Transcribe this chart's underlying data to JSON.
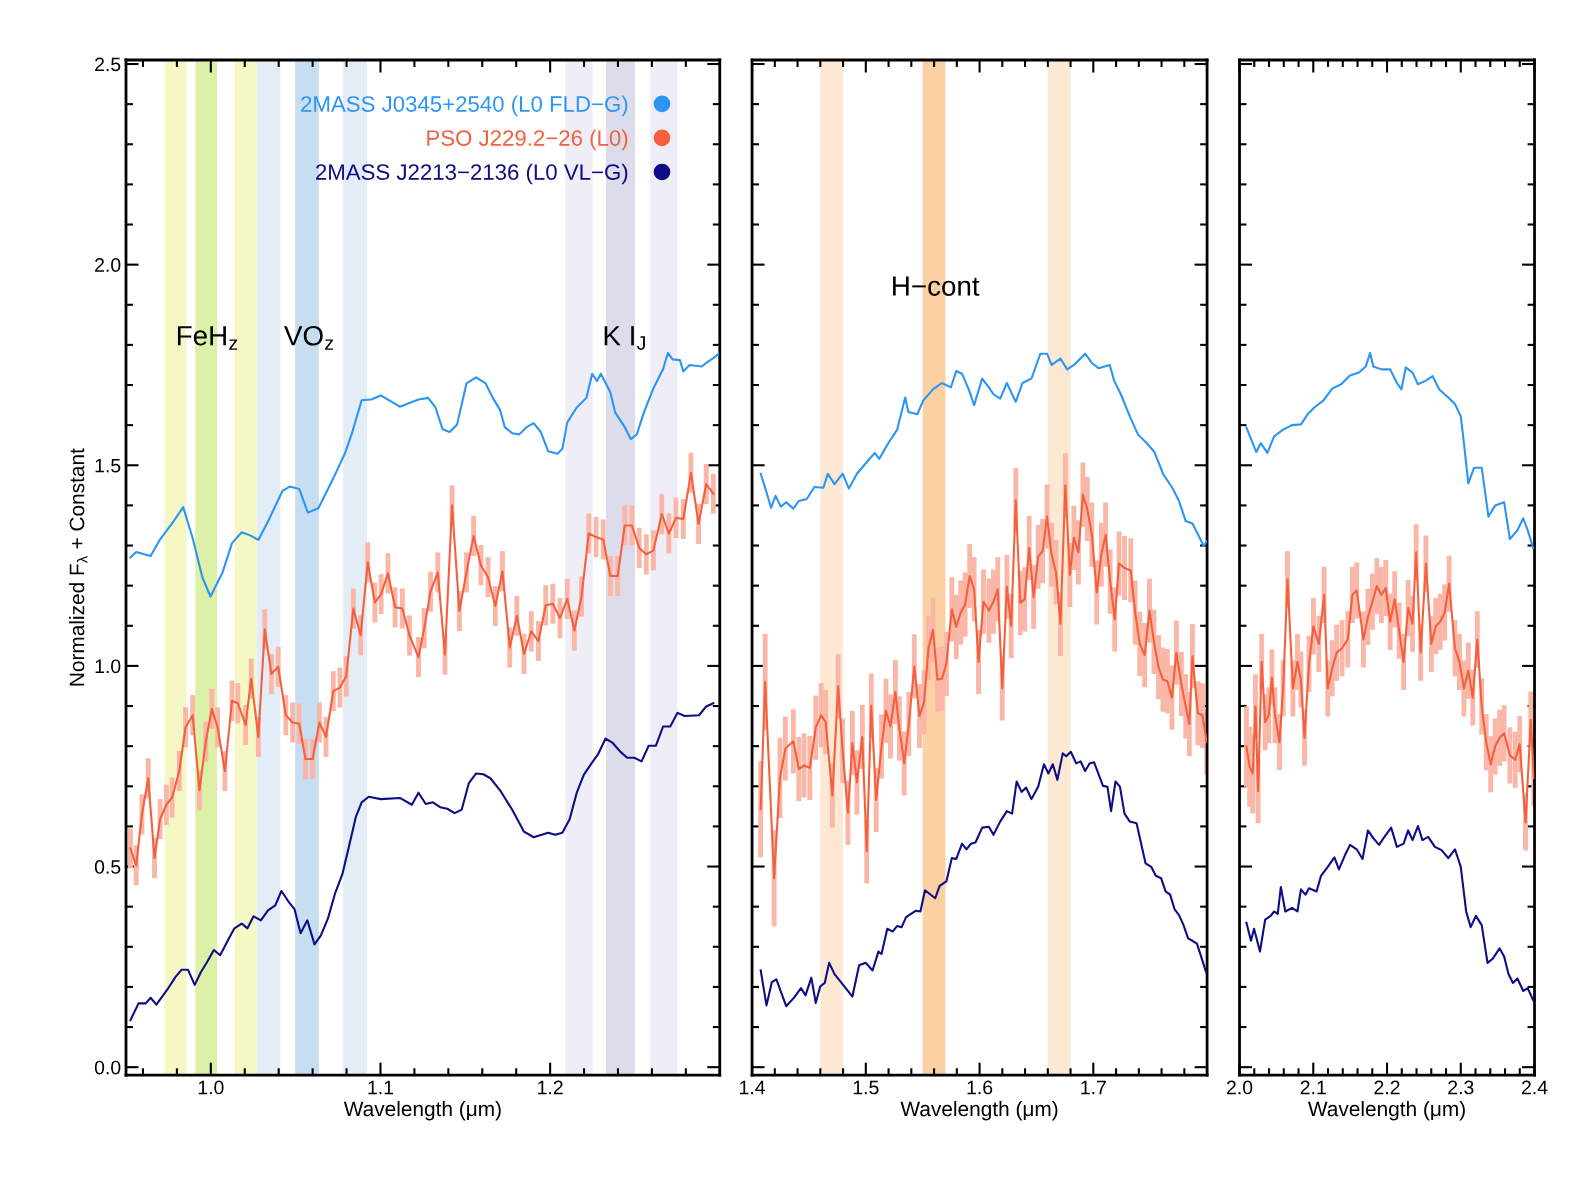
{
  "chart_data": [
    {
      "type": "line",
      "xlabel": "Wavelength (μm)",
      "ylabel": "Normalized F$_{λ}$ + Constant",
      "xlim": [
        0.95,
        1.3
      ],
      "ylim": [
        -0.02,
        2.51
      ],
      "xticks": [
        {
          "value": 1,
          "label": "1.0"
        },
        1.1,
        1.2
      ],
      "yticks": [
        {
          "value": 0,
          "label": "0.0"
        },
        0.5,
        {
          "value": 1,
          "label": "1.0"
        },
        1.5,
        {
          "value": 2,
          "label": "2.0"
        },
        2.5
      ],
      "legend": "top right",
      "marker": "none",
      "line_style": "solid",
      "bands": [
        {
          "axis": "x",
          "from": 0.9727,
          "to": 0.9856,
          "color": "#f5f8c4"
        },
        {
          "axis": "x",
          "from": 0.9908,
          "to": 1.0037,
          "color": "#ddf0a8"
        },
        {
          "axis": "x",
          "from": 1.0141,
          "to": 1.027,
          "color": "#f5f8c4"
        },
        {
          "axis": "x",
          "from": 1.027,
          "to": 1.041,
          "color": "#e3edf8"
        },
        {
          "axis": "x",
          "from": 1.0497,
          "to": 1.0637,
          "color": "#c7ddf0"
        },
        {
          "axis": "x",
          "from": 1.078,
          "to": 1.092,
          "color": "#e3edf8"
        },
        {
          "axis": "x",
          "from": 1.209,
          "to": 1.225,
          "color": "#efedf6"
        },
        {
          "axis": "x",
          "from": 1.233,
          "to": 1.25,
          "color": "#dcdcea"
        },
        {
          "axis": "x",
          "from": 1.259,
          "to": 1.275,
          "color": "#efedf6"
        }
      ],
      "annotations": [
        "FeH$_{z}$",
        "VO$_{z}$",
        "K I$_{J}$"
      ],
      "series": [
        {
          "name": "2MASS J0345+2540 (L0 FLD−G)",
          "color": "#2b95f5",
          "x": [
            0.9526,
            0.956,
            0.9645,
            0.9696,
            0.978,
            0.9837,
            0.9893,
            0.995,
            0.9998,
            1.0069,
            1.0125,
            1.0182,
            1.0238,
            1.028,
            1.0337,
            1.0422,
            1.0465,
            1.0521,
            1.0572,
            1.0634,
            1.0719,
            1.079,
            1.0832,
            1.0889,
            1.0945,
            1.1002,
            1.1114,
            1.1224,
            1.1281,
            1.1324,
            1.1366,
            1.1408,
            1.1451,
            1.1507,
            1.1564,
            1.162,
            1.1662,
            1.1705,
            1.1733,
            1.1776,
            1.1818,
            1.1861,
            1.1903,
            1.1945,
            1.1988,
            1.2044,
            1.2072,
            1.2101,
            1.2157,
            1.2214,
            1.2248,
            1.2276,
            1.2299,
            1.2355,
            1.2383,
            1.244,
            1.2476,
            1.2511,
            1.2553,
            1.2609,
            1.2666,
            1.2694,
            1.2722,
            1.2765,
            1.2785,
            1.2822,
            1.2892,
            1.292,
            1.2962,
            1.299
          ],
          "values": [
            1.27,
            1.284,
            1.274,
            1.312,
            1.36,
            1.396,
            1.318,
            1.221,
            1.173,
            1.233,
            1.306,
            1.333,
            1.324,
            1.314,
            1.36,
            1.436,
            1.447,
            1.441,
            1.382,
            1.393,
            1.465,
            1.529,
            1.58,
            1.662,
            1.664,
            1.674,
            1.646,
            1.664,
            1.668,
            1.644,
            1.59,
            1.583,
            1.601,
            1.704,
            1.719,
            1.704,
            1.668,
            1.638,
            1.595,
            1.58,
            1.577,
            1.595,
            1.605,
            1.583,
            1.535,
            1.529,
            1.541,
            1.607,
            1.644,
            1.668,
            1.728,
            1.71,
            1.728,
            1.682,
            1.632,
            1.595,
            1.565,
            1.577,
            1.632,
            1.692,
            1.74,
            1.78,
            1.764,
            1.762,
            1.734,
            1.75,
            1.746,
            1.755,
            1.767,
            1.777
          ]
        },
        {
          "name": "PSO J229.2−26 (L0)",
          "color": "#f4603e",
          "x": [
            0.9526,
            0.956,
            0.9594,
            0.9631,
            0.9668,
            0.9701,
            0.9738,
            0.9772,
            0.9814,
            0.9851,
            0.9893,
            0.9933,
            0.997,
            1.0006,
            1.004,
            1.0083,
            1.0125,
            1.0159,
            1.0205,
            1.0238,
            1.028,
            1.0318,
            1.0357,
            1.0397,
            1.0442,
            1.0482,
            1.0521,
            1.0558,
            1.06,
            1.064,
            1.0679,
            1.0722,
            1.0761,
            1.0798,
            1.084,
            1.0883,
            1.0925,
            1.0967,
            1.1004,
            1.1044,
            1.1086,
            1.1129,
            1.1171,
            1.1224,
            1.1258,
            1.1295,
            1.1338,
            1.138,
            1.1422,
            1.1465,
            1.1507,
            1.1549,
            1.1592,
            1.1634,
            1.1677,
            1.1719,
            1.1762,
            1.1804,
            1.1846,
            1.1889,
            1.1931,
            1.1974,
            1.2016,
            1.2058,
            1.2101,
            1.2143,
            1.2185,
            1.2228,
            1.2271,
            1.2313,
            1.2355,
            1.2398,
            1.244,
            1.2482,
            1.2525,
            1.2567,
            1.2609,
            1.2658,
            1.27,
            1.2742,
            1.2785,
            1.283,
            1.2875,
            1.292,
            1.2962
          ],
          "values": [
            0.545,
            0.503,
            0.63,
            0.72,
            0.521,
            0.618,
            0.654,
            0.672,
            0.738,
            0.847,
            0.877,
            0.69,
            0.811,
            0.893,
            0.847,
            0.738,
            0.913,
            0.907,
            0.853,
            0.968,
            0.823,
            1.091,
            0.98,
            0.998,
            0.877,
            0.859,
            0.856,
            0.768,
            0.768,
            0.859,
            0.823,
            0.937,
            0.946,
            0.974,
            1.143,
            1.076,
            1.258,
            1.158,
            1.179,
            1.231,
            1.146,
            1.143,
            1.076,
            1.022,
            1.094,
            1.185,
            1.233,
            1.028,
            1.4,
            1.137,
            1.233,
            1.324,
            1.251,
            1.221,
            1.149,
            1.236,
            1.046,
            1.125,
            1.03,
            1.086,
            1.062,
            1.151,
            1.155,
            1.119,
            1.167,
            1.088,
            1.173,
            1.33,
            1.321,
            1.315,
            1.224,
            1.224,
            1.35,
            1.35,
            1.294,
            1.278,
            1.288,
            1.378,
            1.33,
            1.369,
            1.366,
            1.481,
            1.354,
            1.453,
            1.429
          ],
          "errors": [
            0.05,
            0.05,
            0.05,
            0.05,
            0.05,
            0.05,
            0.05,
            0.05,
            0.05,
            0.05,
            0.05,
            0.05,
            0.05,
            0.05,
            0.05,
            0.05,
            0.05,
            0.05,
            0.05,
            0.05,
            0.05,
            0.05,
            0.05,
            0.05,
            0.05,
            0.05,
            0.05,
            0.05,
            0.05,
            0.05,
            0.05,
            0.05,
            0.05,
            0.05,
            0.05,
            0.05,
            0.05,
            0.05,
            0.05,
            0.05,
            0.05,
            0.05,
            0.05,
            0.05,
            0.05,
            0.05,
            0.05,
            0.05,
            0.05,
            0.05,
            0.05,
            0.05,
            0.05,
            0.05,
            0.05,
            0.05,
            0.05,
            0.05,
            0.05,
            0.05,
            0.05,
            0.05,
            0.05,
            0.05,
            0.05,
            0.05,
            0.05,
            0.05,
            0.05,
            0.05,
            0.05,
            0.05,
            0.05,
            0.05,
            0.05,
            0.05,
            0.05,
            0.05,
            0.05,
            0.05,
            0.05,
            0.05,
            0.05,
            0.05,
            0.05
          ]
        },
        {
          "name": "2MASS J2213−2136 (L0 VL−G)",
          "color": "#0d0d85",
          "x": [
            0.9526,
            0.9574,
            0.9616,
            0.9645,
            0.9679,
            0.9743,
            0.9792,
            0.9828,
            0.9865,
            0.9905,
            0.9942,
            0.9978,
            1.0018,
            1.0055,
            1.0097,
            1.0139,
            1.0182,
            1.0216,
            1.0252,
            1.0295,
            1.0337,
            1.038,
            1.0416,
            1.0459,
            1.0493,
            1.0529,
            1.0569,
            1.0611,
            1.0648,
            1.069,
            1.0733,
            1.0776,
            1.0818,
            1.0855,
            1.0889,
            1.0931,
            1.1002,
            1.1114,
            1.1185,
            1.1224,
            1.1267,
            1.1309,
            1.1352,
            1.1394,
            1.1437,
            1.1479,
            1.1521,
            1.1564,
            1.1606,
            1.1648,
            1.1705,
            1.1776,
            1.1846,
            1.1903,
            1.1988,
            1.203,
            1.2072,
            1.2115,
            1.2157,
            1.2199,
            1.2242,
            1.2284,
            1.2327,
            1.2369,
            1.2412,
            1.2454,
            1.2496,
            1.2539,
            1.2581,
            1.2623,
            1.2666,
            1.2708,
            1.2751,
            1.2793,
            1.2878,
            1.292,
            1.2962
          ],
          "values": [
            0.117,
            0.159,
            0.159,
            0.173,
            0.156,
            0.193,
            0.225,
            0.243,
            0.243,
            0.205,
            0.237,
            0.262,
            0.292,
            0.279,
            0.313,
            0.346,
            0.358,
            0.346,
            0.376,
            0.366,
            0.391,
            0.403,
            0.439,
            0.412,
            0.394,
            0.334,
            0.366,
            0.306,
            0.328,
            0.37,
            0.434,
            0.482,
            0.557,
            0.624,
            0.66,
            0.674,
            0.668,
            0.671,
            0.654,
            0.684,
            0.656,
            0.66,
            0.648,
            0.644,
            0.633,
            0.642,
            0.708,
            0.732,
            0.73,
            0.72,
            0.69,
            0.642,
            0.587,
            0.573,
            0.584,
            0.579,
            0.584,
            0.618,
            0.684,
            0.729,
            0.756,
            0.781,
            0.819,
            0.808,
            0.787,
            0.771,
            0.771,
            0.762,
            0.801,
            0.801,
            0.849,
            0.849,
            0.883,
            0.875,
            0.877,
            0.899,
            0.907
          ]
        }
      ]
    },
    {
      "type": "line",
      "xlabel": "Wavelength (μm)",
      "xlim": [
        1.4,
        1.8
      ],
      "ylim": [
        -0.02,
        2.51
      ],
      "xticks": [
        1.4,
        1.5,
        1.6,
        1.7
      ],
      "yticks": [
        0,
        0.5,
        1,
        1.5,
        2,
        2.5
      ],
      "tick_labels": "x",
      "marker": "none",
      "line_style": "solid",
      "bands": [
        {
          "axis": "x",
          "from": 1.46,
          "to": 1.48,
          "color": "#fde8d4"
        },
        {
          "axis": "x",
          "from": 1.55,
          "to": 1.57,
          "color": "#fbd0a3"
        },
        {
          "axis": "x",
          "from": 1.66,
          "to": 1.68,
          "color": "#fde8d4"
        }
      ],
      "annotations": [
        "H−cont"
      ],
      "series": [
        {
          "color": "#2b95f5",
          "x": [
            1.4076,
            1.4115,
            1.4167,
            1.4206,
            1.4253,
            1.43,
            1.4363,
            1.4411,
            1.4481,
            1.4548,
            1.4627,
            1.4666,
            1.4725,
            1.4796,
            1.4851,
            1.4922,
            1.5,
            1.5079,
            1.5118,
            1.5197,
            1.5276,
            1.5346,
            1.5374,
            1.5453,
            1.5504,
            1.559,
            1.5669,
            1.5748,
            1.5795,
            1.5846,
            1.5905,
            1.5952,
            1.6023,
            1.6082,
            1.6122,
            1.6181,
            1.624,
            1.6318,
            1.6377,
            1.6456,
            1.6534,
            1.6593,
            1.6633,
            1.6711,
            1.677,
            1.6829,
            1.6928,
            1.6987,
            1.7046,
            1.7144,
            1.7183,
            1.7242,
            1.7321,
            1.7392,
            1.747,
            1.7537,
            1.7616,
            1.7694,
            1.7753,
            1.7812,
            1.7871,
            1.7911,
            1.797,
            1.8
          ],
          "values": [
            1.479,
            1.444,
            1.394,
            1.424,
            1.397,
            1.408,
            1.392,
            1.411,
            1.416,
            1.446,
            1.444,
            1.479,
            1.453,
            1.479,
            1.442,
            1.479,
            1.505,
            1.531,
            1.516,
            1.555,
            1.589,
            1.669,
            1.633,
            1.627,
            1.661,
            1.689,
            1.705,
            1.694,
            1.735,
            1.728,
            1.689,
            1.65,
            1.716,
            1.694,
            1.677,
            1.666,
            1.705,
            1.658,
            1.705,
            1.716,
            1.778,
            1.778,
            1.75,
            1.766,
            1.739,
            1.75,
            1.778,
            1.755,
            1.742,
            1.75,
            1.711,
            1.677,
            1.622,
            1.577,
            1.555,
            1.533,
            1.477,
            1.444,
            1.411,
            1.361,
            1.355,
            1.333,
            1.299,
            1.311
          ]
        },
        {
          "color": "#f4603e",
          "x": [
            1.4076,
            1.4115,
            1.4194,
            1.4245,
            1.4293,
            1.4363,
            1.4411,
            1.4457,
            1.4508,
            1.456,
            1.4607,
            1.4647,
            1.4706,
            1.4757,
            1.4796,
            1.4843,
            1.4882,
            1.4922,
            1.4969,
            1.5008,
            1.5048,
            1.5091,
            1.5138,
            1.5177,
            1.5217,
            1.526,
            1.5295,
            1.5338,
            1.5378,
            1.5426,
            1.5472,
            1.5512,
            1.5551,
            1.559,
            1.563,
            1.5669,
            1.5708,
            1.5756,
            1.5795,
            1.5834,
            1.5873,
            1.5913,
            1.5952,
            1.5991,
            1.6034,
            1.6082,
            1.6122,
            1.616,
            1.62,
            1.624,
            1.6278,
            1.6318,
            1.6358,
            1.6396,
            1.6436,
            1.6475,
            1.6515,
            1.6554,
            1.6593,
            1.6633,
            1.6672,
            1.6711,
            1.6754,
            1.6794,
            1.6829,
            1.6869,
            1.6908,
            1.6947,
            1.6987,
            1.703,
            1.707,
            1.7108,
            1.7148,
            1.7188,
            1.7226,
            1.7274,
            1.7329,
            1.7368,
            1.7408,
            1.7451,
            1.7494,
            1.7533,
            1.7573,
            1.7612,
            1.7651,
            1.7691,
            1.773,
            1.7774,
            1.7812,
            1.7844,
            1.7871,
            1.7919,
            1.7959,
            1.7997
          ],
          "values": [
            0.643,
            0.96,
            0.471,
            0.721,
            0.794,
            0.812,
            0.743,
            0.752,
            0.746,
            0.846,
            0.877,
            0.86,
            0.677,
            0.949,
            0.788,
            0.634,
            0.808,
            0.71,
            0.823,
            0.538,
            0.901,
            0.666,
            0.799,
            0.888,
            0.849,
            0.935,
            0.844,
            0.757,
            0.855,
            0.999,
            0.875,
            0.91,
            1.044,
            1.09,
            0.966,
            0.968,
            1.005,
            1.141,
            1.097,
            1.133,
            1.153,
            1.224,
            1.191,
            1.01,
            1.16,
            1.138,
            1.16,
            1.191,
            0.944,
            1.197,
            1.099,
            1.413,
            1.157,
            1.166,
            1.294,
            1.172,
            1.272,
            1.286,
            1.372,
            1.277,
            1.233,
            1.105,
            1.45,
            1.227,
            1.319,
            1.283,
            1.427,
            1.391,
            1.327,
            1.183,
            1.277,
            1.327,
            1.21,
            1.116,
            1.255,
            1.244,
            1.238,
            1.133,
            1.055,
            1.027,
            1.138,
            1.06,
            0.997,
            0.966,
            0.962,
            0.921,
            1.033,
            0.955,
            0.899,
            0.855,
            1.024,
            0.882,
            0.877,
            0.81
          ],
          "errors": [
            0.12,
            0.12,
            0.12,
            0.1,
            0.08,
            0.08,
            0.08,
            0.08,
            0.08,
            0.08,
            0.08,
            0.08,
            0.08,
            0.08,
            0.08,
            0.08,
            0.08,
            0.08,
            0.08,
            0.08,
            0.08,
            0.08,
            0.08,
            0.08,
            0.08,
            0.08,
            0.08,
            0.08,
            0.08,
            0.08,
            0.08,
            0.08,
            0.08,
            0.08,
            0.08,
            0.08,
            0.08,
            0.08,
            0.08,
            0.08,
            0.08,
            0.08,
            0.08,
            0.08,
            0.08,
            0.08,
            0.08,
            0.08,
            0.08,
            0.08,
            0.08,
            0.08,
            0.08,
            0.08,
            0.08,
            0.08,
            0.08,
            0.08,
            0.08,
            0.08,
            0.08,
            0.08,
            0.08,
            0.08,
            0.08,
            0.08,
            0.08,
            0.08,
            0.08,
            0.08,
            0.08,
            0.08,
            0.08,
            0.08,
            0.08,
            0.08,
            0.08,
            0.08,
            0.08,
            0.08,
            0.08,
            0.08,
            0.08,
            0.08,
            0.08,
            0.08,
            0.08,
            0.08,
            0.08,
            0.08,
            0.08,
            0.08,
            0.08,
            0.08
          ]
        },
        {
          "color": "#0d0d85",
          "x": [
            1.4076,
            1.4127,
            1.4174,
            1.4214,
            1.43,
            1.4371,
            1.443,
            1.447,
            1.4521,
            1.456,
            1.4599,
            1.4639,
            1.4678,
            1.4725,
            1.4804,
            1.4882,
            1.4941,
            1.5,
            1.5059,
            1.5111,
            1.5138,
            1.5189,
            1.5236,
            1.5276,
            1.5315,
            1.5354,
            1.5441,
            1.548,
            1.552,
            1.561,
            1.5649,
            1.5708,
            1.5756,
            1.5795,
            1.5846,
            1.5885,
            1.5924,
            1.5964,
            1.6023,
            1.6082,
            1.6122,
            1.6181,
            1.624,
            1.6286,
            1.6326,
            1.6369,
            1.6409,
            1.6456,
            1.6515,
            1.6566,
            1.6605,
            1.6644,
            1.6684,
            1.6731,
            1.6762,
            1.6802,
            1.6849,
            1.6888,
            1.6928,
            1.6967,
            1.7006,
            1.7085,
            1.7124,
            1.7156,
            1.7195,
            1.7234,
            1.7274,
            1.7321,
            1.738,
            1.7459,
            1.751,
            1.7549,
            1.7596,
            1.7635,
            1.7675,
            1.7715,
            1.7753,
            1.7793,
            1.7833,
            1.7871,
            1.7911,
            1.799
          ],
          "values": [
            0.241,
            0.154,
            0.212,
            0.219,
            0.152,
            0.174,
            0.197,
            0.179,
            0.223,
            0.16,
            0.201,
            0.21,
            0.26,
            0.232,
            0.204,
            0.176,
            0.254,
            0.26,
            0.241,
            0.288,
            0.282,
            0.345,
            0.338,
            0.352,
            0.349,
            0.374,
            0.39,
            0.388,
            0.441,
            0.421,
            0.452,
            0.463,
            0.521,
            0.519,
            0.557,
            0.543,
            0.557,
            0.56,
            0.597,
            0.599,
            0.579,
            0.612,
            0.638,
            0.632,
            0.712,
            0.686,
            0.697,
            0.668,
            0.699,
            0.755,
            0.732,
            0.755,
            0.716,
            0.782,
            0.775,
            0.786,
            0.757,
            0.762,
            0.738,
            0.757,
            0.76,
            0.701,
            0.699,
            0.638,
            0.712,
            0.699,
            0.632,
            0.612,
            0.608,
            0.508,
            0.499,
            0.477,
            0.471,
            0.438,
            0.43,
            0.393,
            0.379,
            0.354,
            0.321,
            0.315,
            0.308,
            0.238
          ]
        }
      ]
    },
    {
      "type": "line",
      "xlabel": "Wavelength (μm)",
      "xlim": [
        2.0,
        2.4
      ],
      "ylim": [
        -0.02,
        2.51
      ],
      "xticks": [
        {
          "value": 2,
          "label": "2.0"
        },
        2.1,
        2.2,
        2.3,
        2.4
      ],
      "yticks": [
        0,
        0.5,
        1,
        1.5,
        2,
        2.5
      ],
      "tick_labels": "x",
      "marker": "none",
      "line_style": "solid",
      "series": [
        {
          "color": "#2b95f5",
          "x": [
            2.0094,
            2.0155,
            2.0228,
            2.0288,
            2.0378,
            2.0469,
            2.0591,
            2.0712,
            2.0833,
            2.0923,
            2.1014,
            2.1136,
            2.1257,
            2.1378,
            2.1498,
            2.162,
            2.1711,
            2.1771,
            2.1814,
            2.1923,
            2.2043,
            2.2134,
            2.2195,
            2.2255,
            2.2346,
            2.2419,
            2.2527,
            2.2618,
            2.2709,
            2.2831,
            2.2921,
            2.3,
            2.3043,
            2.3102,
            2.3181,
            2.3284,
            2.3375,
            2.3466,
            2.3588,
            2.3666,
            2.3768,
            2.3847,
            2.3908,
            2.3981
          ],
          "values": [
            1.594,
            1.566,
            1.533,
            1.555,
            1.531,
            1.572,
            1.589,
            1.6,
            1.602,
            1.627,
            1.644,
            1.661,
            1.691,
            1.702,
            1.724,
            1.731,
            1.746,
            1.78,
            1.746,
            1.739,
            1.739,
            1.705,
            1.689,
            1.744,
            1.731,
            1.702,
            1.711,
            1.722,
            1.689,
            1.669,
            1.653,
            1.622,
            1.555,
            1.455,
            1.494,
            1.494,
            1.372,
            1.4,
            1.408,
            1.316,
            1.338,
            1.368,
            1.338,
            1.294
          ]
        },
        {
          "color": "#f4603e",
          "x": [
            2.0094,
            2.0137,
            2.0179,
            2.0216,
            2.0252,
            2.03,
            2.0348,
            2.0397,
            2.0439,
            2.0481,
            2.0542,
            2.0591,
            2.0651,
            2.0724,
            2.0785,
            2.0833,
            2.0881,
            2.0942,
            2.1002,
            2.1075,
            2.1147,
            2.1196,
            2.1257,
            2.1317,
            2.139,
            2.1468,
            2.153,
            2.1589,
            2.168,
            2.1741,
            2.1802,
            2.1862,
            2.1923,
            2.1983,
            2.2043,
            2.2104,
            2.2164,
            2.2225,
            2.2286,
            2.2346,
            2.2395,
            2.2456,
            2.2527,
            2.2601,
            2.2661,
            2.2721,
            2.2782,
            2.2842,
            2.2921,
            2.2982,
            2.3043,
            2.3102,
            2.3163,
            2.3224,
            2.3284,
            2.3345,
            2.3406,
            2.3466,
            2.3527,
            2.3588,
            2.3666,
            2.3738,
            2.3799,
            2.3878,
            2.395,
            2.399
          ],
          "values": [
            0.799,
            0.749,
            0.732,
            0.899,
            0.688,
            1.01,
            0.86,
            0.877,
            0.971,
            0.877,
            0.81,
            0.944,
            1.216,
            0.944,
            1.01,
            0.966,
            0.821,
            1.005,
            1.099,
            1.055,
            1.177,
            0.944,
            0.994,
            1.033,
            1.044,
            1.066,
            1.177,
            1.188,
            1.066,
            1.122,
            1.16,
            1.199,
            1.177,
            1.194,
            1.11,
            1.166,
            1.088,
            1.01,
            1.144,
            1.105,
            1.283,
            1.033,
            1.255,
            1.055,
            1.099,
            1.11,
            1.133,
            1.205,
            1.044,
            1.01,
            0.944,
            0.988,
            0.921,
            1.066,
            0.899,
            0.81,
            0.755,
            0.799,
            0.821,
            0.832,
            0.777,
            0.766,
            0.805,
            0.61,
            0.866,
            0.72
          ],
          "errors": [
            0.1,
            0.1,
            0.1,
            0.08,
            0.08,
            0.07,
            0.07,
            0.07,
            0.07,
            0.07,
            0.07,
            0.07,
            0.07,
            0.07,
            0.07,
            0.07,
            0.07,
            0.07,
            0.07,
            0.07,
            0.07,
            0.07,
            0.07,
            0.07,
            0.07,
            0.07,
            0.07,
            0.07,
            0.07,
            0.07,
            0.07,
            0.07,
            0.07,
            0.07,
            0.07,
            0.07,
            0.07,
            0.07,
            0.07,
            0.07,
            0.07,
            0.07,
            0.07,
            0.07,
            0.07,
            0.07,
            0.07,
            0.07,
            0.07,
            0.07,
            0.07,
            0.07,
            0.07,
            0.07,
            0.07,
            0.07,
            0.07,
            0.07,
            0.07,
            0.07,
            0.07,
            0.07,
            0.07,
            0.07,
            0.07,
            0.07
          ]
        },
        {
          "color": "#0d0d85",
          "x": [
            2.0094,
            2.0155,
            2.0197,
            2.0277,
            2.0348,
            2.0422,
            2.0469,
            2.0518,
            2.056,
            2.0621,
            2.0712,
            2.0785,
            2.0833,
            2.0894,
            2.0942,
            2.1045,
            2.1105,
            2.1196,
            2.1287,
            2.1348,
            2.1439,
            2.1498,
            2.1589,
            2.1668,
            2.1741,
            2.1814,
            2.1892,
            2.1953,
            2.2056,
            2.2134,
            2.2225,
            2.2286,
            2.2346,
            2.2419,
            2.248,
            2.2559,
            2.2649,
            2.274,
            2.2831,
            2.2921,
            2.3,
            2.3073,
            2.3134,
            2.3205,
            2.3284,
            2.3363,
            2.3436,
            2.3527,
            2.3588,
            2.3647,
            2.3708,
            2.3768,
            2.3847,
            2.3908,
            2.3981
          ],
          "values": [
            0.36,
            0.315,
            0.345,
            0.288,
            0.368,
            0.377,
            0.388,
            0.382,
            0.449,
            0.388,
            0.397,
            0.388,
            0.443,
            0.43,
            0.446,
            0.438,
            0.477,
            0.499,
            0.523,
            0.493,
            0.532,
            0.554,
            0.543,
            0.519,
            0.59,
            0.571,
            0.554,
            0.571,
            0.597,
            0.549,
            0.557,
            0.59,
            0.566,
            0.601,
            0.566,
            0.574,
            0.549,
            0.541,
            0.521,
            0.543,
            0.499,
            0.388,
            0.349,
            0.377,
            0.354,
            0.26,
            0.271,
            0.296,
            0.276,
            0.232,
            0.21,
            0.221,
            0.19,
            0.197,
            0.167
          ]
        }
      ]
    }
  ]
}
